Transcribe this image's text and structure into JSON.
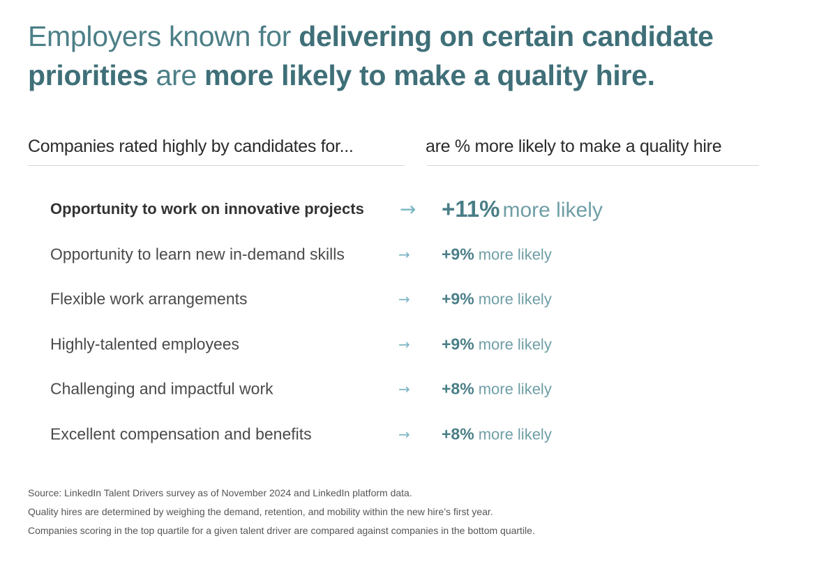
{
  "headline": {
    "p1": "Employers known for ",
    "p2": "delivering on certain candidate priorities",
    "p3": " are ",
    "p4": "more likely to make a quality hire."
  },
  "columns": {
    "left_header": "Companies rated highly by candidates for...",
    "right_header": "are % more likely to make a quality hire"
  },
  "rows": [
    {
      "label": "Opportunity to work on innovative projects",
      "value": "+11%",
      "suffix": "more likely",
      "arrow": "→"
    },
    {
      "label": "Opportunity to learn new in-demand skills",
      "value": "+9%",
      "suffix": "more likely",
      "arrow": "→"
    },
    {
      "label": "Flexible work arrangements",
      "value": "+9%",
      "suffix": "more likely",
      "arrow": "→"
    },
    {
      "label": "Highly-talented employees",
      "value": "+9%",
      "suffix": "more likely",
      "arrow": "→"
    },
    {
      "label": "Challenging and impactful work",
      "value": "+8%",
      "suffix": "more likely",
      "arrow": "→"
    },
    {
      "label": "Excellent compensation and benefits",
      "value": "+8%",
      "suffix": "more likely",
      "arrow": "→"
    }
  ],
  "footnotes": {
    "line1": "Source: LinkedIn Talent Drivers survey as of November 2024 and LinkedIn platform data.",
    "line2": "Quality hires are determined by weighing the demand, retention, and mobility within the new hire’s first year.",
    "line3": "Companies scoring in the top quartile for a given talent driver are compared against companies in the bottom quartile."
  },
  "colors": {
    "headline": "#4c7f87",
    "accent": "#4a7e87",
    "arrow": "#7ab4c2"
  }
}
